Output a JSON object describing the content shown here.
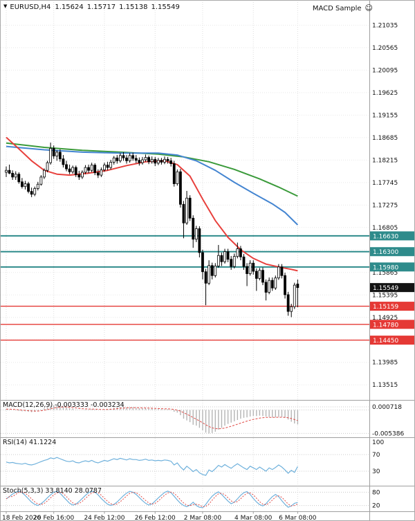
{
  "header": {
    "collapse_icon": "▼",
    "symbol": "EURUSD,H4",
    "open": "1.15624",
    "high": "1.15717",
    "low": "1.15138",
    "close": "1.15549",
    "ea_name": "MACD Sample",
    "ea_icon": "☺"
  },
  "panels": {
    "macd_label": "MACD(12,26,9) -0.003333 -0.003234",
    "rsi_label": "RSI(14) 41.1224",
    "stoch_label": "Stoch(5,3,3) 33.8140 28.0787"
  },
  "colors": {
    "background": "#ffffff",
    "grid": "#dedede",
    "grid_light": "#e8e8e8",
    "separator": "#9e9e9e",
    "axis_text": "#111111",
    "candle_up": "#ffffff",
    "candle_down": "#000000",
    "candle_outline": "#000000",
    "ma_slow": "#3a9a3a",
    "ma_mid": "#4485d1",
    "ma_fast": "#e8403c",
    "resistance": "#2e8b8b",
    "support": "#e53935",
    "current_price_box": "#141414",
    "indicator_line": "#6fb1dc",
    "indicator_signal": "#e04a45",
    "macd_histogram": "#b4b4b4",
    "level_line": "#c8c8c8"
  },
  "chart_data": {
    "type": "candlestick",
    "title": "EURUSD,H4",
    "price_range": {
      "top": 1.212,
      "bottom": 1.132
    },
    "y_axis_labels": [
      1.21035,
      1.20565,
      1.20095,
      1.19625,
      1.19155,
      1.18685,
      1.18215,
      1.17745,
      1.17275,
      1.16805,
      1.16335,
      1.15865,
      1.15395,
      1.14925,
      1.14455,
      1.13985,
      1.13515
    ],
    "time_labels": [
      "18 Feb 2026",
      "20 Feb 16:00",
      "24 Feb 12:00",
      "26 Feb 12:00",
      "2 Mar 08:00",
      "4 Mar 08:00",
      "6 Mar 08:00"
    ],
    "time_tick_indices": [
      0,
      15,
      31,
      47,
      62,
      78,
      92
    ],
    "candles": [
      [
        1.1796,
        1.1808,
        1.1786,
        1.18
      ],
      [
        1.18,
        1.1812,
        1.1792,
        1.1794
      ],
      [
        1.1794,
        1.18,
        1.178,
        1.1786
      ],
      [
        1.1786,
        1.1798,
        1.178,
        1.1792
      ],
      [
        1.1792,
        1.1796,
        1.1772,
        1.1776
      ],
      [
        1.1776,
        1.1784,
        1.1762,
        1.1766
      ],
      [
        1.1766,
        1.1778,
        1.176,
        1.1772
      ],
      [
        1.1772,
        1.1776,
        1.1752,
        1.1756
      ],
      [
        1.1756,
        1.1764,
        1.1744,
        1.175
      ],
      [
        1.175,
        1.1766,
        1.1746,
        1.1762
      ],
      [
        1.1762,
        1.1776,
        1.1758,
        1.1771
      ],
      [
        1.1771,
        1.179,
        1.1768,
        1.1786
      ],
      [
        1.1786,
        1.1804,
        1.1782,
        1.18
      ],
      [
        1.18,
        1.182,
        1.1796,
        1.1816
      ],
      [
        1.1816,
        1.1858,
        1.1812,
        1.1846
      ],
      [
        1.1846,
        1.1852,
        1.1824,
        1.183
      ],
      [
        1.183,
        1.1842,
        1.182,
        1.1838
      ],
      [
        1.1838,
        1.1844,
        1.1818,
        1.1824
      ],
      [
        1.1824,
        1.1832,
        1.1806,
        1.1812
      ],
      [
        1.1812,
        1.182,
        1.1798,
        1.1803
      ],
      [
        1.1803,
        1.1812,
        1.1792,
        1.1797
      ],
      [
        1.1797,
        1.181,
        1.1793,
        1.1806
      ],
      [
        1.1806,
        1.181,
        1.1786,
        1.1791
      ],
      [
        1.1791,
        1.1799,
        1.178,
        1.1786
      ],
      [
        1.1786,
        1.18,
        1.1782,
        1.1796
      ],
      [
        1.1796,
        1.1811,
        1.1792,
        1.1806
      ],
      [
        1.1806,
        1.1812,
        1.1794,
        1.18
      ],
      [
        1.18,
        1.1816,
        1.1796,
        1.1811
      ],
      [
        1.1811,
        1.1815,
        1.179,
        1.1795
      ],
      [
        1.1795,
        1.1802,
        1.1784,
        1.179
      ],
      [
        1.179,
        1.1806,
        1.1786,
        1.1801
      ],
      [
        1.1801,
        1.1816,
        1.1797,
        1.1811
      ],
      [
        1.1811,
        1.1818,
        1.18,
        1.1806
      ],
      [
        1.1806,
        1.1822,
        1.1802,
        1.1817
      ],
      [
        1.1817,
        1.183,
        1.1812,
        1.1826
      ],
      [
        1.1826,
        1.1832,
        1.1814,
        1.182
      ],
      [
        1.182,
        1.1836,
        1.1816,
        1.1831
      ],
      [
        1.1831,
        1.1838,
        1.182,
        1.1826
      ],
      [
        1.1826,
        1.1832,
        1.1814,
        1.182
      ],
      [
        1.182,
        1.1836,
        1.1816,
        1.1831
      ],
      [
        1.1831,
        1.1837,
        1.182,
        1.1825
      ],
      [
        1.1825,
        1.1832,
        1.1815,
        1.1821
      ],
      [
        1.1821,
        1.1827,
        1.181,
        1.1816
      ],
      [
        1.1816,
        1.1828,
        1.1812,
        1.1822
      ],
      [
        1.1822,
        1.1833,
        1.1818,
        1.1827
      ],
      [
        1.1827,
        1.1831,
        1.1813,
        1.1818
      ],
      [
        1.1818,
        1.1829,
        1.1814,
        1.1823
      ],
      [
        1.1823,
        1.1828,
        1.1809,
        1.1815
      ],
      [
        1.1815,
        1.1826,
        1.1811,
        1.1821
      ],
      [
        1.1821,
        1.1826,
        1.1812,
        1.1817
      ],
      [
        1.1817,
        1.1829,
        1.1813,
        1.1823
      ],
      [
        1.1823,
        1.1828,
        1.1814,
        1.182
      ],
      [
        1.182,
        1.1826,
        1.1808,
        1.1814
      ],
      [
        1.1814,
        1.182,
        1.1766,
        1.1772
      ],
      [
        1.1772,
        1.1802,
        1.1768,
        1.1797
      ],
      [
        1.1797,
        1.1803,
        1.1722,
        1.1729
      ],
      [
        1.1729,
        1.1736,
        1.1658,
        1.169
      ],
      [
        1.169,
        1.1757,
        1.1686,
        1.1742
      ],
      [
        1.1742,
        1.1748,
        1.1694,
        1.17
      ],
      [
        1.17,
        1.1706,
        1.1638,
        1.1656
      ],
      [
        1.1656,
        1.1684,
        1.165,
        1.1678
      ],
      [
        1.1678,
        1.1683,
        1.1618,
        1.1628
      ],
      [
        1.1628,
        1.1634,
        1.1572,
        1.1588
      ],
      [
        1.1588,
        1.1594,
        1.1518,
        1.1564
      ],
      [
        1.1564,
        1.1612,
        1.156,
        1.1601
      ],
      [
        1.1601,
        1.1607,
        1.1572,
        1.158
      ],
      [
        1.158,
        1.1606,
        1.1576,
        1.16
      ],
      [
        1.16,
        1.1644,
        1.1596,
        1.1622
      ],
      [
        1.1622,
        1.1628,
        1.16,
        1.1609
      ],
      [
        1.1609,
        1.1636,
        1.1605,
        1.163
      ],
      [
        1.163,
        1.1636,
        1.1608,
        1.1614
      ],
      [
        1.1614,
        1.1621,
        1.1592,
        1.1599
      ],
      [
        1.1599,
        1.1626,
        1.1595,
        1.162
      ],
      [
        1.162,
        1.1649,
        1.1616,
        1.1636
      ],
      [
        1.1636,
        1.1642,
        1.1612,
        1.1619
      ],
      [
        1.1619,
        1.1625,
        1.1592,
        1.1599
      ],
      [
        1.1599,
        1.1606,
        1.1558,
        1.1584
      ],
      [
        1.1584,
        1.1612,
        1.158,
        1.1606
      ],
      [
        1.1606,
        1.1612,
        1.1582,
        1.1589
      ],
      [
        1.1589,
        1.1595,
        1.1548,
        1.1574
      ],
      [
        1.1574,
        1.1596,
        1.157,
        1.1591
      ],
      [
        1.1591,
        1.1597,
        1.156,
        1.1566
      ],
      [
        1.1566,
        1.1572,
        1.1528,
        1.1545
      ],
      [
        1.1545,
        1.1576,
        1.1541,
        1.157
      ],
      [
        1.157,
        1.1576,
        1.1548,
        1.1554
      ],
      [
        1.1554,
        1.158,
        1.155,
        1.1575
      ],
      [
        1.1575,
        1.1604,
        1.1571,
        1.1598
      ],
      [
        1.1598,
        1.1604,
        1.1574,
        1.158
      ],
      [
        1.158,
        1.1586,
        1.1532,
        1.154
      ],
      [
        1.154,
        1.1546,
        1.1496,
        1.1505
      ],
      [
        1.1505,
        1.1521,
        1.1493,
        1.1515
      ],
      [
        1.1515,
        1.1565,
        1.151,
        1.156
      ],
      [
        1.15624,
        1.15717,
        1.15138,
        1.15549
      ]
    ],
    "ma_lines": [
      {
        "name": "slow-ma",
        "color_key": "ma_slow",
        "points": [
          [
            0,
            1.1857
          ],
          [
            12,
            1.1848
          ],
          [
            24,
            1.1842
          ],
          [
            36,
            1.1838
          ],
          [
            48,
            1.1834
          ],
          [
            56,
            1.1828
          ],
          [
            64,
            1.1818
          ],
          [
            72,
            1.1802
          ],
          [
            80,
            1.1782
          ],
          [
            86,
            1.1765
          ],
          [
            92,
            1.1746
          ]
        ]
      },
      {
        "name": "mid-ma",
        "color_key": "ma_mid",
        "points": [
          [
            0,
            1.185
          ],
          [
            12,
            1.1843
          ],
          [
            24,
            1.1838
          ],
          [
            36,
            1.1836
          ],
          [
            48,
            1.1836
          ],
          [
            54,
            1.1832
          ],
          [
            60,
            1.182
          ],
          [
            66,
            1.18
          ],
          [
            72,
            1.1775
          ],
          [
            78,
            1.1752
          ],
          [
            84,
            1.173
          ],
          [
            88,
            1.1712
          ],
          [
            92,
            1.1686
          ]
        ]
      },
      {
        "name": "fast-ma",
        "color_key": "ma_fast",
        "points": [
          [
            0,
            1.1869
          ],
          [
            4,
            1.1845
          ],
          [
            8,
            1.182
          ],
          [
            12,
            1.18
          ],
          [
            16,
            1.1792
          ],
          [
            20,
            1.179
          ],
          [
            26,
            1.1794
          ],
          [
            32,
            1.18
          ],
          [
            38,
            1.181
          ],
          [
            44,
            1.1818
          ],
          [
            50,
            1.182
          ],
          [
            54,
            1.1812
          ],
          [
            58,
            1.1788
          ],
          [
            62,
            1.174
          ],
          [
            66,
            1.1695
          ],
          [
            70,
            1.166
          ],
          [
            74,
            1.1634
          ],
          [
            78,
            1.1616
          ],
          [
            82,
            1.1604
          ],
          [
            86,
            1.1598
          ],
          [
            90,
            1.1593
          ],
          [
            92,
            1.159
          ]
        ]
      }
    ],
    "horizontal_lines": [
      {
        "price": 1.1663,
        "label": "1.16630",
        "kind": "resistance"
      },
      {
        "price": 1.163,
        "label": "1.16300",
        "kind": "resistance"
      },
      {
        "price": 1.1598,
        "label": "1.15980",
        "kind": "resistance"
      },
      {
        "price": 1.15159,
        "label": "1.15159",
        "kind": "support"
      },
      {
        "price": 1.1478,
        "label": "1.14780",
        "kind": "support"
      },
      {
        "price": 1.1445,
        "label": "1.14450",
        "kind": "support"
      }
    ],
    "current_price": {
      "price": 1.15549,
      "label": "1.15549"
    },
    "indicators": {
      "macd": {
        "name": "MACD(12,26,9)",
        "value_main": "-0.003333",
        "value_signal": "-0.003234",
        "range": [
          -0.0058,
          0.0012
        ],
        "axis_labels": [
          {
            "value": 0.000718,
            "text": "0.000718"
          },
          {
            "value": -0.005386,
            "text": "-0.005386"
          }
        ],
        "values": [
          0.0002,
          0.0001,
          0.0,
          -0.0001,
          -0.0002,
          -0.0003,
          -0.0003,
          -0.0004,
          -0.0005,
          -0.0004,
          -0.0002,
          0.0001,
          0.0004,
          0.0007,
          0.001,
          0.0011,
          0.0011,
          0.001,
          0.0008,
          0.0006,
          0.0004,
          0.0003,
          0.0001,
          0.0,
          0.0,
          0.0001,
          0.0001,
          0.0002,
          0.0001,
          0.0,
          0.0,
          0.0001,
          0.0002,
          0.0003,
          0.0005,
          0.0006,
          0.0007,
          0.0007,
          0.0006,
          0.0006,
          0.0006,
          0.0005,
          0.0004,
          0.0004,
          0.0004,
          0.0003,
          0.0003,
          0.0002,
          0.0002,
          0.0002,
          0.0002,
          0.0002,
          0.0001,
          -0.0004,
          -0.0006,
          -0.0012,
          -0.002,
          -0.0024,
          -0.0028,
          -0.0034,
          -0.0036,
          -0.0041,
          -0.0047,
          -0.0052,
          -0.0054,
          -0.0053,
          -0.005,
          -0.0045,
          -0.0041,
          -0.0036,
          -0.0032,
          -0.0029,
          -0.0026,
          -0.0023,
          -0.002,
          -0.0018,
          -0.0017,
          -0.0015,
          -0.0014,
          -0.0014,
          -0.0013,
          -0.0014,
          -0.0015,
          -0.0016,
          -0.0017,
          -0.0017,
          -0.0016,
          -0.0016,
          -0.0018,
          -0.0022,
          -0.0027,
          -0.0031,
          -0.003333
        ]
      },
      "rsi": {
        "name": "RSI(14)",
        "value": "41.1224",
        "levels": [
          70,
          30
        ],
        "axis_labels": [
          {
            "value": 100,
            "text": "100"
          },
          {
            "value": 70,
            "text": "70"
          },
          {
            "value": 30,
            "text": "30"
          }
        ],
        "values": [
          52,
          50,
          51,
          49,
          48,
          47,
          49,
          46,
          45,
          47,
          50,
          53,
          56,
          58,
          62,
          60,
          63,
          60,
          57,
          54,
          53,
          55,
          51,
          50,
          53,
          55,
          53,
          56,
          52,
          50,
          53,
          56,
          54,
          57,
          60,
          58,
          61,
          59,
          57,
          60,
          58,
          58,
          56,
          57,
          59,
          56,
          57,
          55,
          56,
          55,
          57,
          56,
          54,
          45,
          50,
          40,
          33,
          42,
          36,
          29,
          34,
          26,
          22,
          20,
          33,
          29,
          36,
          44,
          40,
          46,
          41,
          37,
          43,
          48,
          43,
          38,
          34,
          42,
          38,
          34,
          40,
          35,
          30,
          38,
          34,
          39,
          45,
          40,
          33,
          25,
          32,
          27,
          41.1
        ]
      },
      "stoch": {
        "name": "Stoch(5,3,3)",
        "value_k": "33.8140",
        "value_d": "28.0787",
        "levels": [
          80,
          20
        ],
        "axis_labels": [
          {
            "value": 80,
            "text": "80"
          },
          {
            "value": 20,
            "text": "20"
          }
        ],
        "values_k": [
          50,
          60,
          72,
          80,
          85,
          78,
          65,
          50,
          35,
          25,
          20,
          28,
          40,
          55,
          68,
          80,
          84,
          76,
          60,
          45,
          30,
          22,
          26,
          38,
          52,
          66,
          78,
          85,
          80,
          68,
          52,
          38,
          26,
          20,
          25,
          36,
          50,
          64,
          76,
          84,
          80,
          70,
          56,
          42,
          30,
          22,
          27,
          40,
          54,
          67,
          79,
          85,
          78,
          62,
          45,
          30,
          20,
          15,
          22,
          35,
          20,
          12,
          10,
          25,
          45,
          62,
          74,
          82,
          70,
          55,
          40,
          28,
          35,
          50,
          66,
          78,
          83,
          70,
          52,
          36,
          24,
          18,
          28,
          45,
          60,
          70,
          60,
          42,
          25,
          12,
          18,
          30,
          33.8
        ]
      }
    }
  }
}
